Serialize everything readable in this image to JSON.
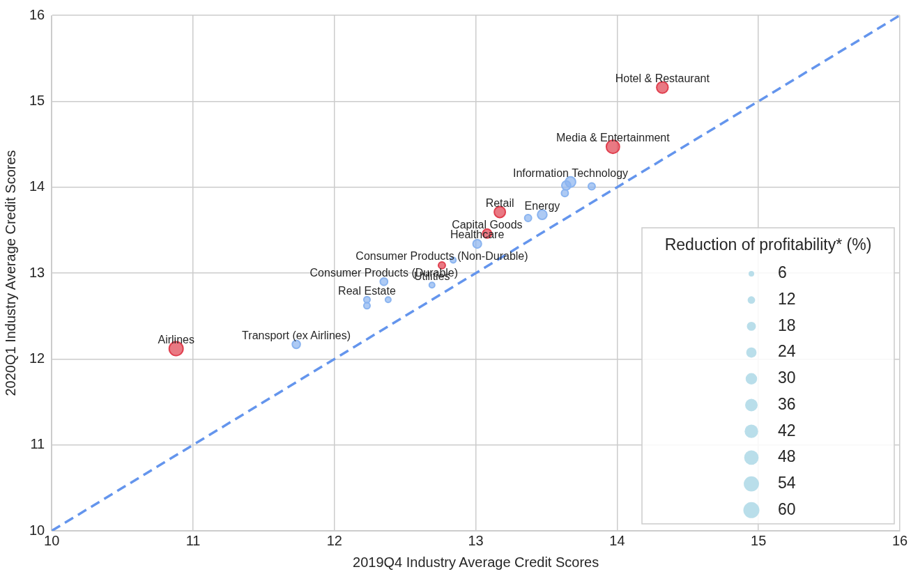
{
  "chart_data": {
    "type": "bubble",
    "xlabel": "2019Q4 Industry Average Credit Scores",
    "ylabel": "2020Q1 Industry Average Credit Scores",
    "legend_title": "Reduction of profitability* (%)",
    "xlim": [
      10,
      16
    ],
    "ylim": [
      10,
      16
    ],
    "xticks": [
      10,
      11,
      12,
      13,
      14,
      15,
      16
    ],
    "yticks": [
      10,
      11,
      12,
      13,
      14,
      15,
      16
    ],
    "grid": true,
    "size_legend": [
      6,
      12,
      18,
      24,
      30,
      36,
      42,
      48,
      54,
      60
    ],
    "series": [
      {
        "x": [
          10.88,
          14.32,
          13.97,
          13.67,
          13.64,
          13.82,
          13.63,
          13.17,
          13.47,
          13.37,
          13.08,
          13.01,
          12.76,
          12.84,
          12.35,
          12.69,
          12.23,
          12.23,
          12.38,
          11.73
        ],
        "values": [
          12.12,
          15.16,
          14.47,
          14.06,
          14.02,
          14.01,
          13.93,
          13.71,
          13.68,
          13.64,
          13.46,
          13.34,
          13.09,
          13.15,
          12.9,
          12.86,
          12.69,
          12.62,
          12.69,
          12.17
        ],
        "sizes": [
          45,
          30,
          40,
          24,
          18,
          10,
          10,
          28,
          20,
          10,
          18,
          16,
          10,
          6,
          12,
          6,
          8,
          8,
          6,
          14
        ],
        "colors": [
          "#e0404f",
          "#e0404f",
          "#e0404f",
          "#8ab4f0",
          "#8ab4f0",
          "#8ab4f0",
          "#8ab4f0",
          "#e0404f",
          "#8ab4f0",
          "#8ab4f0",
          "#e0404f",
          "#8ab4f0",
          "#e0404f",
          "#8ab4f0",
          "#8ab4f0",
          "#8ab4f0",
          "#8ab4f0",
          "#8ab4f0",
          "#8ab4f0",
          "#8ab4f0"
        ]
      },
      {
        "type": "line",
        "x": [
          10,
          16
        ],
        "values": [
          10,
          16
        ],
        "color": "#6495ed",
        "line_style": "dashed",
        "marker": "none"
      }
    ],
    "annotations": [
      {
        "text": "Airlines",
        "x": 10.88,
        "y": 12.12
      },
      {
        "text": "Hotel & Restaurant",
        "x": 14.32,
        "y": 15.16
      },
      {
        "text": "Media & Entertainment",
        "x": 13.97,
        "y": 14.47
      },
      {
        "text": "Information Technology",
        "x": 13.67,
        "y": 14.06
      },
      {
        "text": "Retail",
        "x": 13.17,
        "y": 13.71
      },
      {
        "text": "Energy",
        "x": 13.47,
        "y": 13.68
      },
      {
        "text": "Capital Goods",
        "x": 13.08,
        "y": 13.46
      },
      {
        "text": "Healthcare",
        "x": 13.01,
        "y": 13.34
      },
      {
        "text": "Consumer Products (Non-Durable)",
        "x": 12.76,
        "y": 13.09
      },
      {
        "text": "Consumer Products (Durable)",
        "x": 12.35,
        "y": 12.9
      },
      {
        "text": "Utilities",
        "x": 12.69,
        "y": 12.86
      },
      {
        "text": "Real Estate",
        "x": 12.23,
        "y": 12.69
      },
      {
        "text": "Transport (ex Airlines)",
        "x": 11.73,
        "y": 12.17
      }
    ]
  }
}
